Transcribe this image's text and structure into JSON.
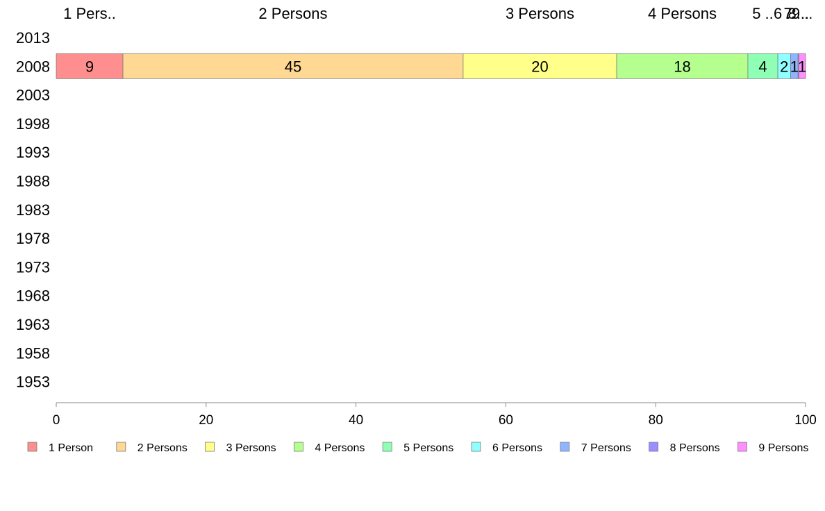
{
  "chart_data": {
    "type": "bar",
    "orientation": "horizontal",
    "stacked": true,
    "categories": [
      "2013",
      "2008",
      "2003",
      "1998",
      "1993",
      "1988",
      "1983",
      "1978",
      "1973",
      "1968",
      "1963",
      "1958",
      "1953"
    ],
    "series": [
      {
        "name": "1 Person",
        "values": [
          0,
          8.9,
          0,
          0,
          0,
          0,
          0,
          0,
          0,
          0,
          0,
          0,
          0
        ],
        "label": "9"
      },
      {
        "name": "2 Persons",
        "values": [
          0,
          45.4,
          0,
          0,
          0,
          0,
          0,
          0,
          0,
          0,
          0,
          0,
          0
        ],
        "label": "45"
      },
      {
        "name": "3 Persons",
        "values": [
          0,
          20.5,
          0,
          0,
          0,
          0,
          0,
          0,
          0,
          0,
          0,
          0,
          0
        ],
        "label": "20"
      },
      {
        "name": "4 Persons",
        "values": [
          0,
          17.5,
          0,
          0,
          0,
          0,
          0,
          0,
          0,
          0,
          0,
          0,
          0
        ],
        "label": "18"
      },
      {
        "name": "5 Persons",
        "values": [
          0,
          4.0,
          0,
          0,
          0,
          0,
          0,
          0,
          0,
          0,
          0,
          0,
          0
        ],
        "label": "4"
      },
      {
        "name": "6 Persons",
        "values": [
          0,
          1.7,
          0,
          0,
          0,
          0,
          0,
          0,
          0,
          0,
          0,
          0,
          0
        ],
        "label": "2"
      },
      {
        "name": "7 Persons",
        "values": [
          0,
          1.0,
          0,
          0,
          0,
          0,
          0,
          0,
          0,
          0,
          0,
          0,
          0
        ],
        "label": "1"
      },
      {
        "name": "8 Persons",
        "values": [
          0,
          0.1,
          0,
          0,
          0,
          0,
          0,
          0,
          0,
          0,
          0,
          0,
          0
        ],
        "label": ""
      },
      {
        "name": "9 Persons",
        "values": [
          0,
          0.9,
          0,
          0,
          0,
          0,
          0,
          0,
          0,
          0,
          0,
          0,
          0
        ],
        "label": "1"
      }
    ],
    "top_labels": [
      "1 Pers..",
      "2 Persons",
      "3 Persons",
      "4 Persons",
      "5 ..",
      "6 ..",
      "7 ..",
      "8 ..",
      "9 .."
    ],
    "colors": [
      "#ff8f8f",
      "#ffd893",
      "#ffff8a",
      "#b5ff8f",
      "#8fffb5",
      "#8fffff",
      "#8fb5ff",
      "#9b8fff",
      "#ff8fff"
    ],
    "xlim": [
      0,
      100
    ],
    "xticks": [
      0,
      20,
      40,
      60,
      80,
      100
    ],
    "title": "",
    "xlabel": "",
    "ylabel": "",
    "legend": "bottom",
    "grid": false
  }
}
